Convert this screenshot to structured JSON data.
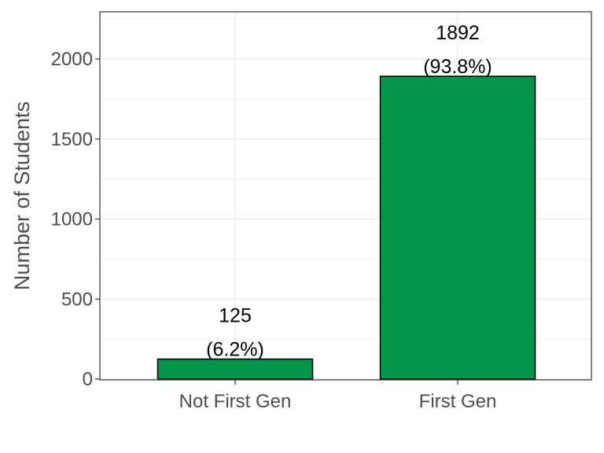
{
  "chart_data": {
    "type": "bar",
    "title": "",
    "xlabel": "",
    "ylabel": "Number of Students",
    "categories": [
      "Not First Gen",
      "First Gen"
    ],
    "values": [
      125,
      1892
    ],
    "percent_labels": [
      "(6.2%)",
      "(93.8%)"
    ],
    "count_labels": [
      "125",
      "1892"
    ],
    "ylim": [
      0,
      2300
    ],
    "yticks": [
      0,
      500,
      1000,
      1500,
      2000
    ],
    "ytick_labels": [
      "0",
      "500",
      "1000",
      "1500",
      "2000"
    ],
    "grid": true,
    "legend": "none",
    "bar_color": "#03944a",
    "bar_edge_color": "#000000"
  }
}
